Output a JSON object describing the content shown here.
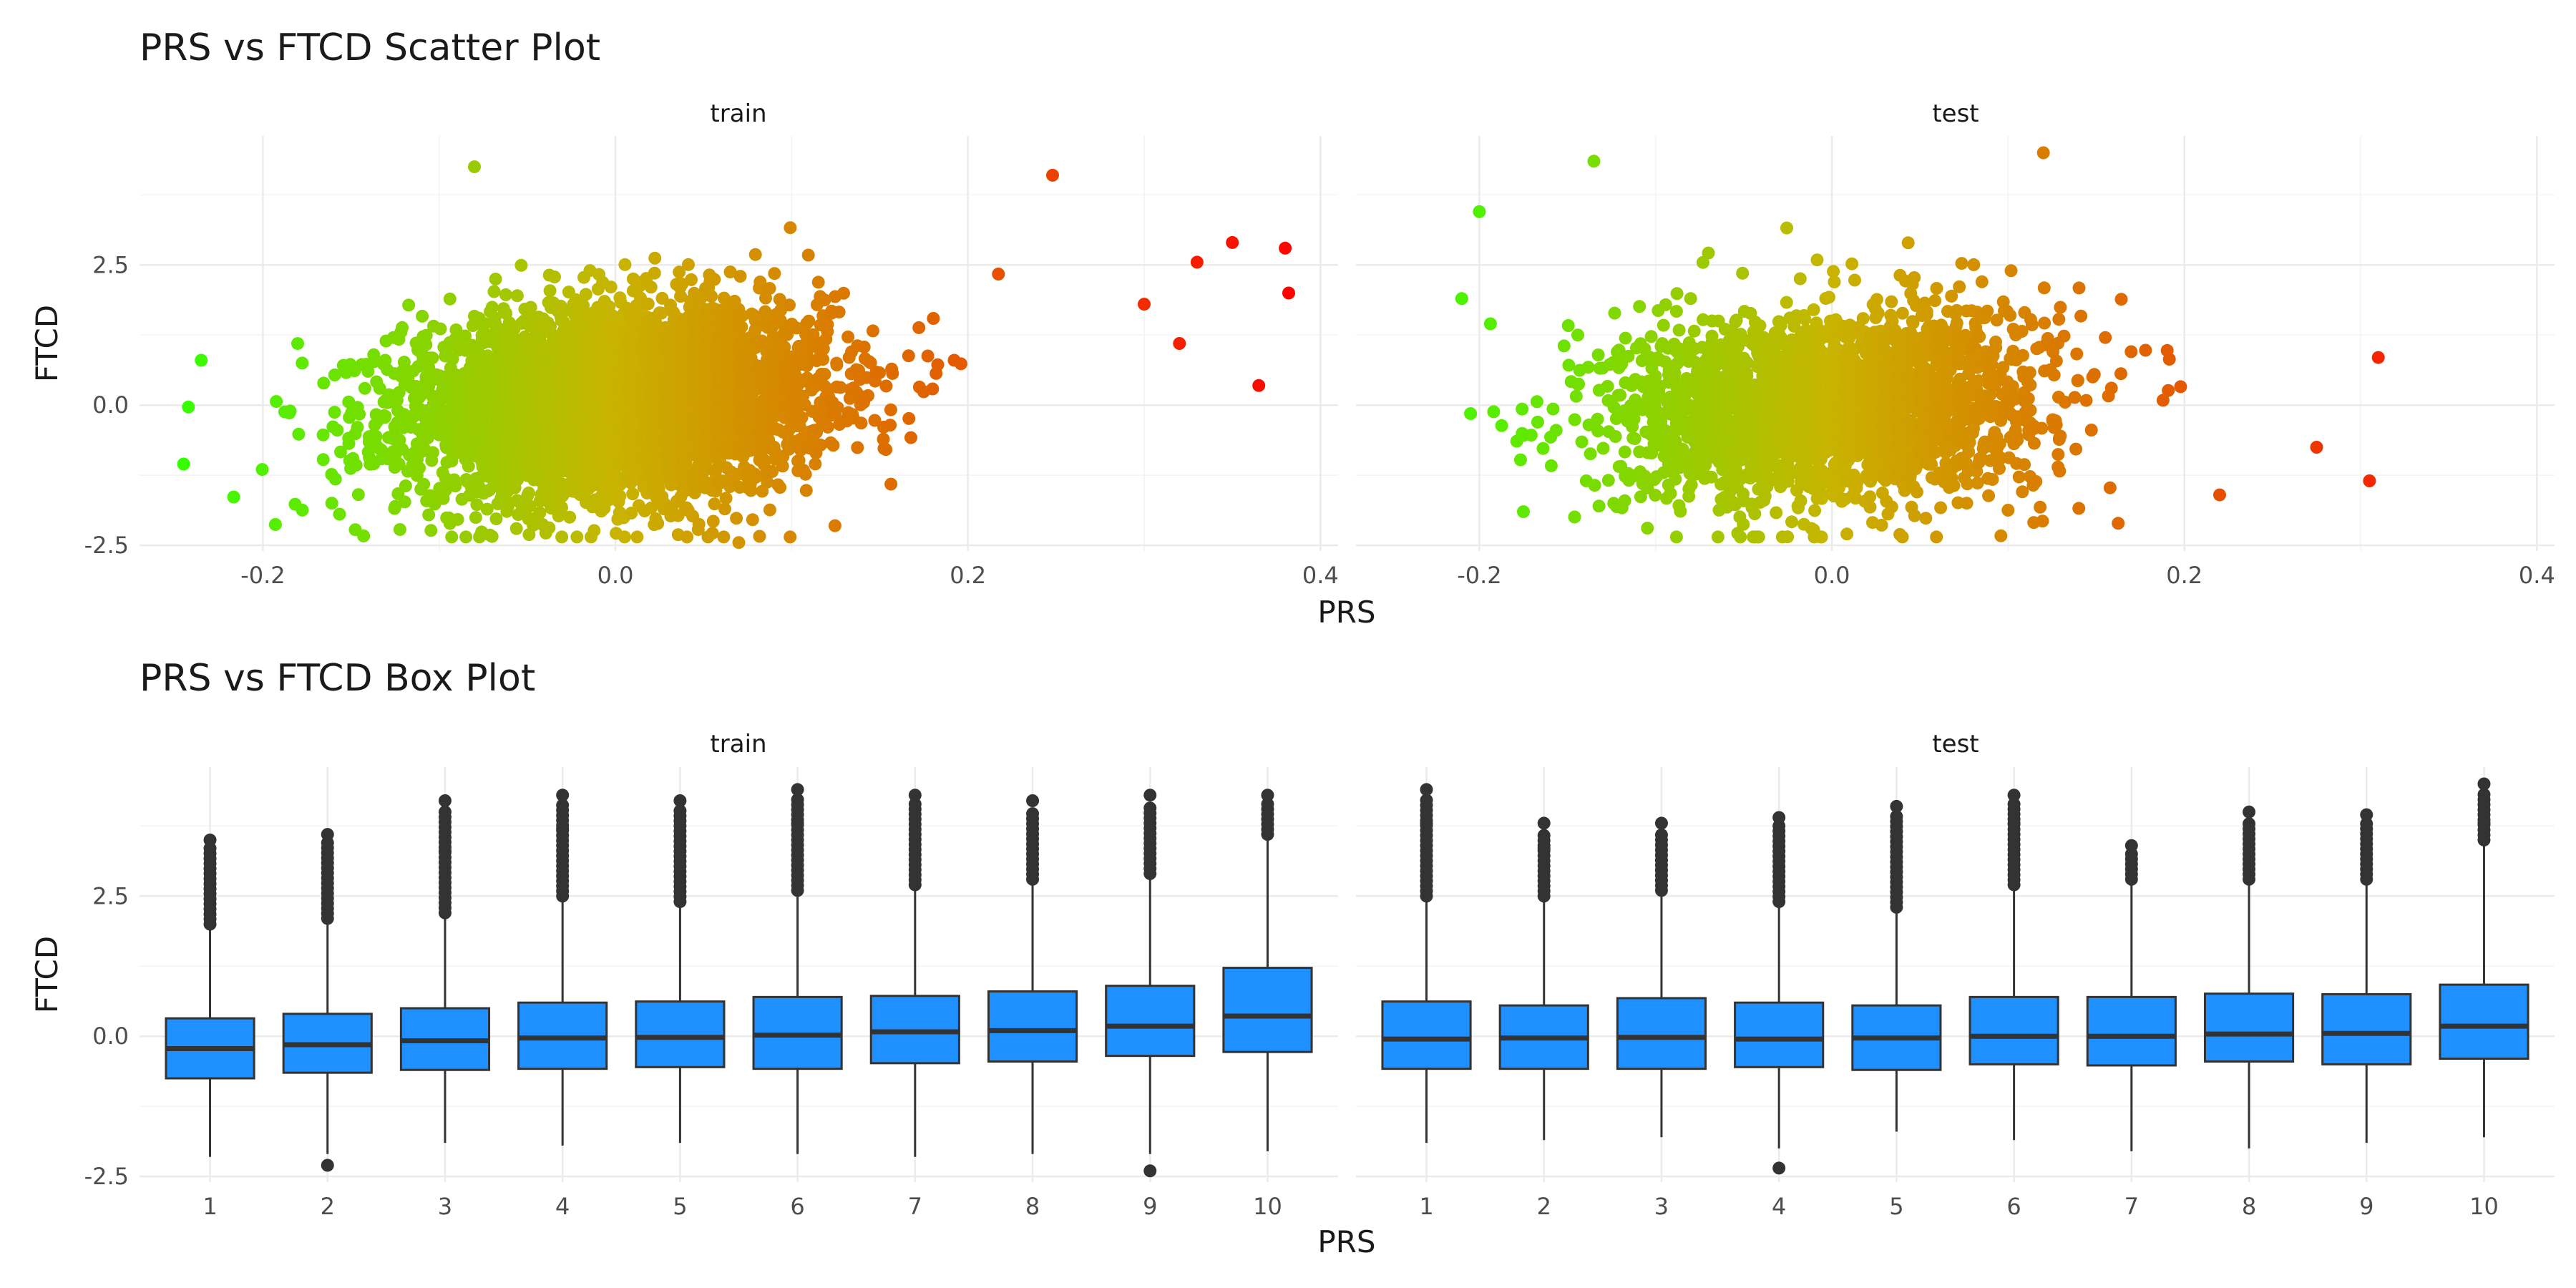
{
  "scatter": {
    "title": "PRS vs FTCD Scatter Plot",
    "xlabel": "PRS",
    "ylabel": "FTCD",
    "facets": [
      "train",
      "test"
    ],
    "x_ticks": [
      "-0.2",
      "0.0",
      "0.2",
      "0.4"
    ],
    "y_ticks": [
      "-2.5",
      "0.0",
      "2.5"
    ]
  },
  "box": {
    "title": "PRS vs FTCD Box Plot",
    "xlabel": "PRS",
    "ylabel": "FTCD",
    "facets": [
      "train",
      "test"
    ],
    "x_ticks": [
      "1",
      "2",
      "3",
      "4",
      "5",
      "6",
      "7",
      "8",
      "9",
      "10"
    ],
    "y_ticks": [
      "-2.5",
      "0.0",
      "2.5"
    ]
  },
  "chart_data": [
    {
      "type": "scatter",
      "title": "PRS vs FTCD Scatter Plot",
      "xlabel": "PRS",
      "ylabel": "FTCD",
      "xlim": [
        -0.27,
        0.41
      ],
      "ylim": [
        -2.6,
        4.8
      ],
      "x_ticks": [
        -0.2,
        0.0,
        0.2,
        0.4
      ],
      "y_ticks": [
        -2.5,
        0.0,
        2.5
      ],
      "grid": true,
      "color_scale": {
        "low": "#33ff00",
        "mid": "#c8b400",
        "high": "#ff0000",
        "domain": [
          -0.25,
          0.0,
          0.39
        ],
        "mapped_to": "PRS"
      },
      "facets": [
        {
          "name": "train",
          "x_center": 0.0,
          "x_sd": 0.06,
          "y_center": 0.05,
          "y_sd": 1.0,
          "notable_points": [
            {
              "x": 0.38,
              "y": 2.8
            },
            {
              "x": 0.382,
              "y": 2.0
            },
            {
              "x": 0.35,
              "y": 2.9
            },
            {
              "x": 0.365,
              "y": 0.35
            },
            {
              "x": 0.33,
              "y": 2.55
            },
            {
              "x": 0.32,
              "y": 1.1
            },
            {
              "x": 0.3,
              "y": 1.8
            },
            {
              "x": 0.248,
              "y": 4.1
            },
            {
              "x": -0.245,
              "y": -1.05
            },
            {
              "x": -0.235,
              "y": 0.8
            },
            {
              "x": -0.08,
              "y": 4.25
            },
            {
              "x": 0.07,
              "y": -2.45
            }
          ]
        },
        {
          "name": "test",
          "x_center": 0.0,
          "x_sd": 0.06,
          "y_center": 0.0,
          "y_sd": 1.0,
          "notable_points": [
            {
              "x": 0.31,
              "y": 0.85
            },
            {
              "x": 0.305,
              "y": -1.35
            },
            {
              "x": 0.275,
              "y": -0.75
            },
            {
              "x": 0.12,
              "y": 4.5
            },
            {
              "x": -0.135,
              "y": 4.35
            },
            {
              "x": -0.2,
              "y": 3.45
            },
            {
              "x": -0.21,
              "y": 1.9
            },
            {
              "x": -0.205,
              "y": -0.15
            },
            {
              "x": 0.22,
              "y": -1.6
            },
            {
              "x": -0.01,
              "y": -2.35
            },
            {
              "x": -0.175,
              "y": -1.9
            }
          ]
        }
      ]
    },
    {
      "type": "box",
      "title": "PRS vs FTCD Box Plot",
      "xlabel": "PRS",
      "ylabel": "FTCD",
      "categories": [
        "1",
        "2",
        "3",
        "4",
        "5",
        "6",
        "7",
        "8",
        "9",
        "10"
      ],
      "ylim": [
        -2.6,
        4.8
      ],
      "y_ticks": [
        -2.5,
        0.0,
        2.5
      ],
      "fill": "#1e90ff",
      "grid": true,
      "facets": [
        {
          "name": "train",
          "boxes": [
            {
              "q1": -0.75,
              "median": -0.22,
              "q3": 0.32,
              "wmin": -2.15,
              "wmax": 1.9,
              "outliers": [
                3.5
              ]
            },
            {
              "q1": -0.65,
              "median": -0.15,
              "q3": 0.4,
              "wmin": -2.1,
              "wmax": 2.0,
              "outliers": [
                -2.3,
                3.6
              ]
            },
            {
              "q1": -0.6,
              "median": -0.08,
              "q3": 0.5,
              "wmin": -1.9,
              "wmax": 2.1,
              "outliers": [
                3.3,
                4.2
              ]
            },
            {
              "q1": -0.58,
              "median": -0.03,
              "q3": 0.6,
              "wmin": -1.95,
              "wmax": 2.4,
              "outliers": [
                3.7,
                4.3
              ]
            },
            {
              "q1": -0.55,
              "median": -0.02,
              "q3": 0.62,
              "wmin": -1.9,
              "wmax": 2.3,
              "outliers": [
                4.2
              ]
            },
            {
              "q1": -0.58,
              "median": 0.02,
              "q3": 0.7,
              "wmin": -2.1,
              "wmax": 2.5,
              "outliers": [
                3.8,
                4.4
              ]
            },
            {
              "q1": -0.48,
              "median": 0.08,
              "q3": 0.72,
              "wmin": -2.15,
              "wmax": 2.6,
              "outliers": [
                4.3
              ]
            },
            {
              "q1": -0.45,
              "median": 0.1,
              "q3": 0.8,
              "wmin": -2.1,
              "wmax": 2.7,
              "outliers": [
                4.2
              ]
            },
            {
              "q1": -0.35,
              "median": 0.18,
              "q3": 0.9,
              "wmin": -2.1,
              "wmax": 2.8,
              "outliers": [
                -2.4,
                4.3
              ]
            },
            {
              "q1": -0.28,
              "median": 0.36,
              "q3": 1.22,
              "wmin": -2.05,
              "wmax": 3.5,
              "outliers": [
                4.3
              ]
            }
          ]
        },
        {
          "name": "test",
          "boxes": [
            {
              "q1": -0.58,
              "median": -0.05,
              "q3": 0.62,
              "wmin": -1.9,
              "wmax": 2.4,
              "outliers": [
                3.8,
                4.4
              ]
            },
            {
              "q1": -0.58,
              "median": -0.03,
              "q3": 0.55,
              "wmin": -1.85,
              "wmax": 2.4,
              "outliers": [
                3.35,
                3.8
              ]
            },
            {
              "q1": -0.58,
              "median": -0.02,
              "q3": 0.68,
              "wmin": -1.8,
              "wmax": 2.5,
              "outliers": [
                3.8
              ]
            },
            {
              "q1": -0.55,
              "median": -0.05,
              "q3": 0.6,
              "wmin": -2.0,
              "wmax": 2.3,
              "outliers": [
                -2.35,
                3.9
              ]
            },
            {
              "q1": -0.6,
              "median": -0.03,
              "q3": 0.55,
              "wmin": -1.7,
              "wmax": 2.2,
              "outliers": [
                4.1
              ]
            },
            {
              "q1": -0.5,
              "median": 0.0,
              "q3": 0.7,
              "wmin": -1.85,
              "wmax": 2.6,
              "outliers": [
                3.8,
                4.3
              ]
            },
            {
              "q1": -0.52,
              "median": 0.0,
              "q3": 0.7,
              "wmin": -2.05,
              "wmax": 2.7,
              "outliers": [
                3.4
              ]
            },
            {
              "q1": -0.45,
              "median": 0.04,
              "q3": 0.76,
              "wmin": -2.0,
              "wmax": 2.7,
              "outliers": [
                4.0
              ]
            },
            {
              "q1": -0.5,
              "median": 0.05,
              "q3": 0.75,
              "wmin": -1.9,
              "wmax": 2.7,
              "outliers": [
                3.95
              ]
            },
            {
              "q1": -0.4,
              "median": 0.18,
              "q3": 0.92,
              "wmin": -1.8,
              "wmax": 3.4,
              "outliers": [
                3.8,
                4.5
              ]
            }
          ]
        }
      ]
    }
  ]
}
